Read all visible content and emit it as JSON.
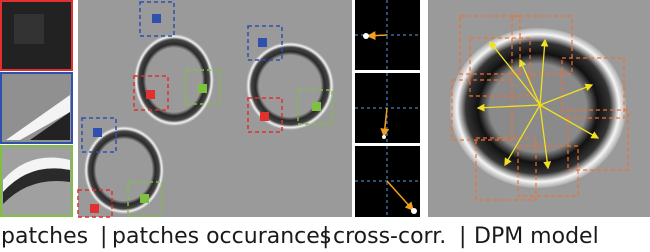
{
  "captions": [
    "patches",
    "patches occurances",
    "cross-corr.",
    "DPM model"
  ],
  "separators": [
    "|",
    "|",
    "|"
  ]
}
